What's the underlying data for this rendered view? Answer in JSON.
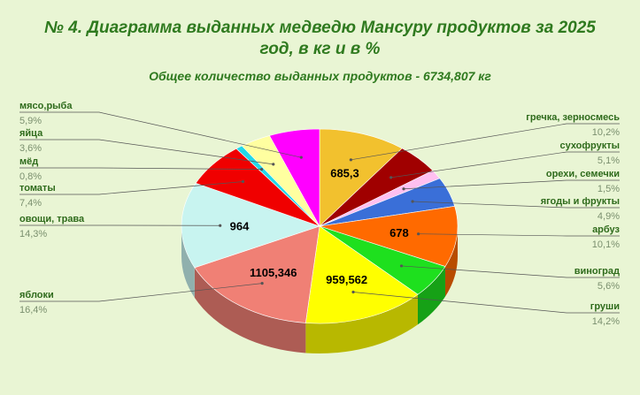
{
  "header": {
    "title_line1": "№ 4.    Диаграмма выданных медведю Мансуру продуктов за 2025",
    "title_line2": "год,  в кг и в %",
    "subtitle": "Общее количество выданных продуктов - 6734,807 кг"
  },
  "chart_data": {
    "type": "pie",
    "title": "№ 4. Диаграмма выданных медведю Мансуру продуктов за 2025 год, в кг и в %",
    "subtitle": "Общее количество выданных продуктов - 6734,807 кг",
    "slices": [
      {
        "name": "гречка, зерносмесь",
        "pct_label": "10,2%",
        "pct": 10.2,
        "value_label": "685,3",
        "color": "#f2c12e"
      },
      {
        "name": "сухофрукты",
        "pct_label": "5,1%",
        "pct": 5.1,
        "value_label": "",
        "color": "#a00000"
      },
      {
        "name": "орехи, семечки",
        "pct_label": "1,5%",
        "pct": 1.5,
        "value_label": "",
        "color": "#ffc0f0"
      },
      {
        "name": "ягоды и фрукты",
        "pct_label": "4,9%",
        "pct": 4.9,
        "value_label": "",
        "color": "#3a6fd8"
      },
      {
        "name": "арбуз",
        "pct_label": "10,1%",
        "pct": 10.1,
        "value_label": "678",
        "color": "#ff6a00"
      },
      {
        "name": "виноград",
        "pct_label": "5,6%",
        "pct": 5.6,
        "value_label": "",
        "color": "#1ee01e"
      },
      {
        "name": "груши",
        "pct_label": "14,2%",
        "pct": 14.2,
        "value_label": "959,562",
        "color": "#ffff00"
      },
      {
        "name": "яблоки",
        "pct_label": "16,4%",
        "pct": 16.4,
        "value_label": "1105,346",
        "color": "#f08075"
      },
      {
        "name": "овощи, трава",
        "pct_label": "14,3%",
        "pct": 14.3,
        "value_label": "964",
        "color": "#c8f4f0"
      },
      {
        "name": "томаты",
        "pct_label": "7,4%",
        "pct": 7.4,
        "value_label": "",
        "color": "#f00000"
      },
      {
        "name": "мёд",
        "pct_label": "0,8%",
        "pct": 0.8,
        "value_label": "",
        "color": "#22d8e8"
      },
      {
        "name": "яйца",
        "pct_label": "3,6%",
        "pct": 3.6,
        "value_label": "",
        "color": "#ffffa0"
      },
      {
        "name": "мясо,рыба",
        "pct_label": "5,9%",
        "pct": 5.9,
        "value_label": "",
        "color": "#ff00ff"
      }
    ]
  }
}
